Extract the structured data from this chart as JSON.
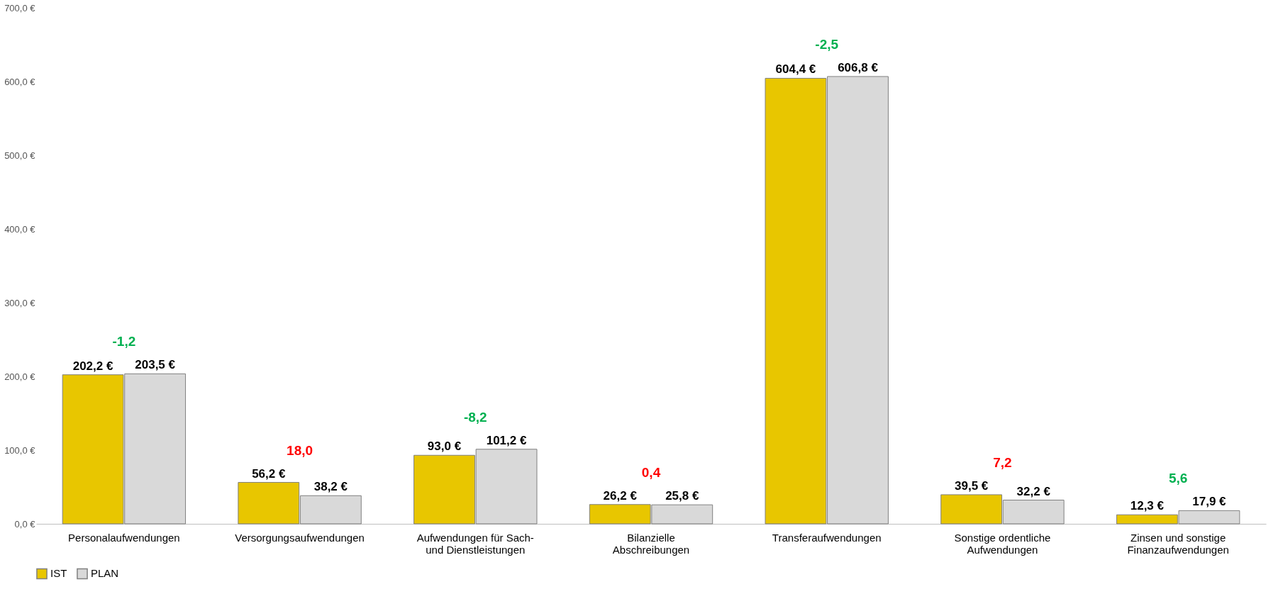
{
  "chart_data": {
    "type": "bar",
    "categories": [
      "Personalaufwendungen",
      "Versorgungsaufwendungen",
      "Aufwendungen für Sach- und Dienstleistungen",
      "Bilanzielle Abschreibungen",
      "Transferaufwendungen",
      "Sonstige ordentliche Aufwendungen",
      "Zinsen und sonstige Finanzaufwendungen"
    ],
    "series": [
      {
        "name": "IST",
        "color": "#e8c600",
        "values": [
          202.2,
          56.2,
          93.0,
          26.2,
          604.4,
          39.5,
          12.3
        ],
        "value_labels": [
          "202,2 €",
          "56,2 €",
          "93,0 €",
          "26,2 €",
          "604,4 €",
          "39,5 €",
          "12,3 €"
        ]
      },
      {
        "name": "PLAN",
        "color": "#d9d9d9",
        "values": [
          203.5,
          38.2,
          101.2,
          25.8,
          606.8,
          32.2,
          17.9
        ],
        "value_labels": [
          "203,5 €",
          "38,2 €",
          "101,2 €",
          "25,8 €",
          "606,8 €",
          "32,2 €",
          "17,9 €"
        ]
      }
    ],
    "ylim": [
      0,
      700
    ],
    "yticks": [
      {
        "value": 0,
        "label": "0,0 €"
      },
      {
        "value": 100,
        "label": "100,0 €"
      },
      {
        "value": 200,
        "label": "200,0 €"
      },
      {
        "value": 300,
        "label": "300,0 €"
      },
      {
        "value": 400,
        "label": "400,0 €"
      },
      {
        "value": 500,
        "label": "500,0 €"
      },
      {
        "value": 600,
        "label": "600,0 €"
      },
      {
        "value": 700,
        "label": "700,0 €"
      }
    ],
    "annotations": [
      "-1,2",
      "18,0",
      "-8,2",
      "0,4",
      "-2,5",
      "7,2",
      "5,6"
    ],
    "legend": "bottom",
    "grid": false
  }
}
